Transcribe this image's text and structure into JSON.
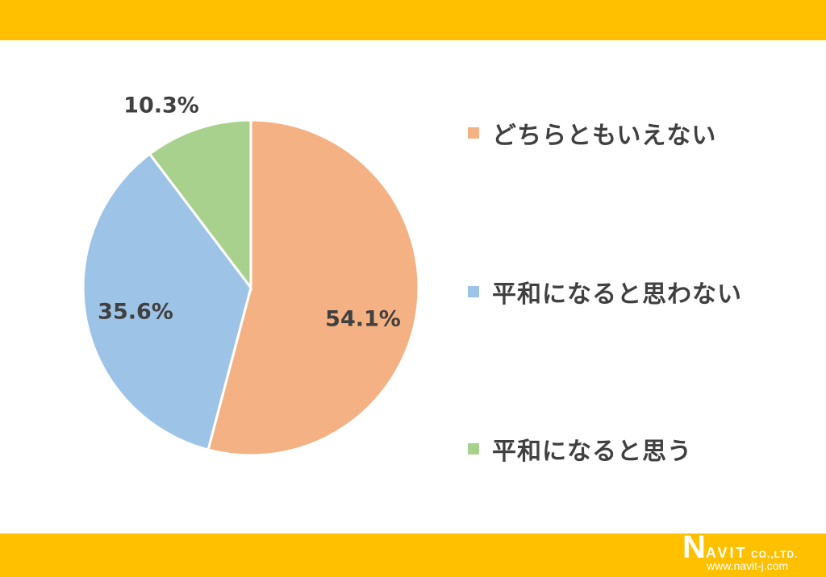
{
  "colors": {
    "bar": "#FFC000",
    "text": "#404040"
  },
  "chart_data": {
    "type": "pie",
    "start_angle": "12 o'clock, clockwise",
    "slices": [
      {
        "name": "どちらともいえない",
        "value": 54.1,
        "label": "54.1%",
        "color": "#F4B183"
      },
      {
        "name": "平和になると思わない",
        "value": 35.6,
        "label": "35.6%",
        "color": "#9DC3E6"
      },
      {
        "name": "平和になると思う",
        "value": 10.3,
        "label": "10.3%",
        "color": "#A9D18E"
      }
    ],
    "legend_placement": "right"
  },
  "logo": {
    "text": "NAVIT",
    "suffix": "CO.,LTD.",
    "url": "www.navit-j.com"
  }
}
